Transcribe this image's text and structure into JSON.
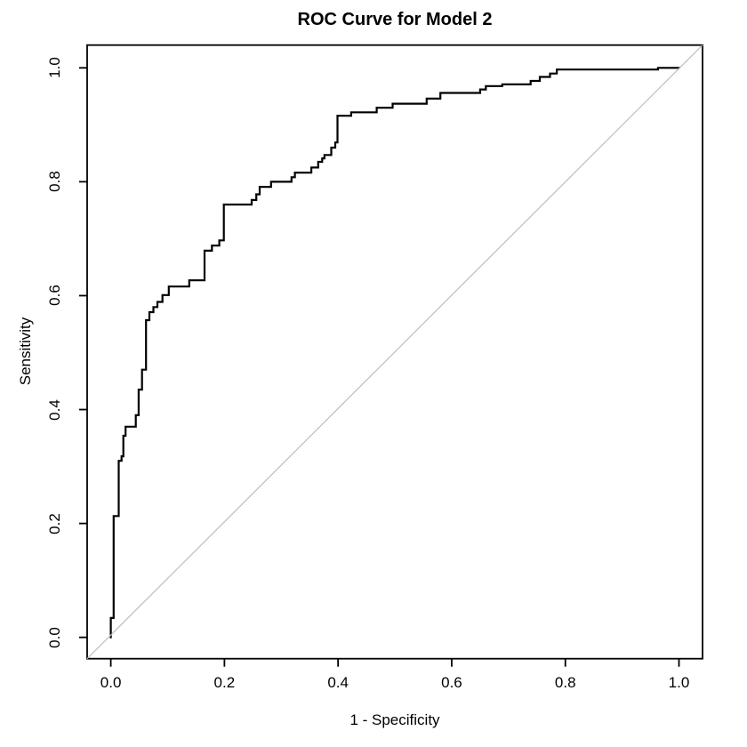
{
  "title": "ROC Curve for Model 2",
  "axes": {
    "x": {
      "label": "1 - Specificity",
      "tick_labels": [
        "0.0",
        "0.2",
        "0.4",
        "0.6",
        "0.8",
        "1.0"
      ],
      "tick_values": [
        0.0,
        0.2,
        0.4,
        0.6,
        0.8,
        1.0
      ],
      "range": [
        0.0,
        1.0
      ]
    },
    "y": {
      "label": "Sensitivity",
      "tick_labels": [
        "0.0",
        "0.2",
        "0.4",
        "0.6",
        "0.8",
        "1.0"
      ],
      "tick_values": [
        0.0,
        0.2,
        0.4,
        0.6,
        0.8,
        1.0
      ],
      "range": [
        0.0,
        1.0
      ]
    }
  },
  "colors": {
    "background": "#ffffff",
    "curve": "#000000",
    "diagonal": "#bebebe",
    "box": "#000000",
    "text": "#000000"
  },
  "chart_data": {
    "type": "line",
    "title": "ROC Curve for Model 2",
    "xlabel": "1 - Specificity",
    "ylabel": "Sensitivity",
    "xlim": [
      0.0,
      1.0
    ],
    "ylim": [
      0.0,
      1.0
    ],
    "grid": false,
    "legend_position": "none",
    "series": [
      {
        "name": "roc-curve-model-2",
        "style": "step",
        "color": "#000000",
        "line_width": 2.2,
        "points": [
          [
            0.0,
            0.0
          ],
          [
            0.0,
            0.034
          ],
          [
            0.005,
            0.034
          ],
          [
            0.005,
            0.213
          ],
          [
            0.014,
            0.213
          ],
          [
            0.014,
            0.31
          ],
          [
            0.019,
            0.31
          ],
          [
            0.019,
            0.318
          ],
          [
            0.022,
            0.318
          ],
          [
            0.022,
            0.354
          ],
          [
            0.026,
            0.354
          ],
          [
            0.026,
            0.37
          ],
          [
            0.044,
            0.37
          ],
          [
            0.044,
            0.39
          ],
          [
            0.049,
            0.39
          ],
          [
            0.049,
            0.435
          ],
          [
            0.055,
            0.435
          ],
          [
            0.055,
            0.47
          ],
          [
            0.062,
            0.47
          ],
          [
            0.062,
            0.557
          ],
          [
            0.068,
            0.557
          ],
          [
            0.068,
            0.571
          ],
          [
            0.075,
            0.571
          ],
          [
            0.075,
            0.58
          ],
          [
            0.082,
            0.58
          ],
          [
            0.082,
            0.589
          ],
          [
            0.091,
            0.589
          ],
          [
            0.091,
            0.601
          ],
          [
            0.102,
            0.601
          ],
          [
            0.102,
            0.616
          ],
          [
            0.138,
            0.616
          ],
          [
            0.138,
            0.627
          ],
          [
            0.165,
            0.627
          ],
          [
            0.165,
            0.679
          ],
          [
            0.178,
            0.679
          ],
          [
            0.178,
            0.688
          ],
          [
            0.191,
            0.688
          ],
          [
            0.191,
            0.697
          ],
          [
            0.199,
            0.697
          ],
          [
            0.199,
            0.76
          ],
          [
            0.248,
            0.76
          ],
          [
            0.248,
            0.768
          ],
          [
            0.256,
            0.768
          ],
          [
            0.256,
            0.778
          ],
          [
            0.262,
            0.778
          ],
          [
            0.262,
            0.791
          ],
          [
            0.282,
            0.791
          ],
          [
            0.282,
            0.8
          ],
          [
            0.318,
            0.8
          ],
          [
            0.318,
            0.808
          ],
          [
            0.324,
            0.808
          ],
          [
            0.324,
            0.816
          ],
          [
            0.353,
            0.816
          ],
          [
            0.353,
            0.825
          ],
          [
            0.365,
            0.825
          ],
          [
            0.365,
            0.835
          ],
          [
            0.372,
            0.835
          ],
          [
            0.372,
            0.841
          ],
          [
            0.376,
            0.841
          ],
          [
            0.376,
            0.847
          ],
          [
            0.388,
            0.847
          ],
          [
            0.388,
            0.86
          ],
          [
            0.395,
            0.86
          ],
          [
            0.395,
            0.869
          ],
          [
            0.399,
            0.869
          ],
          [
            0.399,
            0.916
          ],
          [
            0.423,
            0.916
          ],
          [
            0.423,
            0.922
          ],
          [
            0.468,
            0.922
          ],
          [
            0.468,
            0.93
          ],
          [
            0.496,
            0.93
          ],
          [
            0.496,
            0.937
          ],
          [
            0.556,
            0.937
          ],
          [
            0.556,
            0.946
          ],
          [
            0.58,
            0.946
          ],
          [
            0.58,
            0.956
          ],
          [
            0.65,
            0.956
          ],
          [
            0.65,
            0.962
          ],
          [
            0.66,
            0.962
          ],
          [
            0.66,
            0.968
          ],
          [
            0.689,
            0.968
          ],
          [
            0.689,
            0.971
          ],
          [
            0.739,
            0.971
          ],
          [
            0.739,
            0.977
          ],
          [
            0.755,
            0.977
          ],
          [
            0.755,
            0.984
          ],
          [
            0.773,
            0.984
          ],
          [
            0.773,
            0.99
          ],
          [
            0.785,
            0.99
          ],
          [
            0.785,
            0.997
          ],
          [
            0.963,
            0.997
          ],
          [
            0.963,
            1.0
          ],
          [
            1.0,
            1.0
          ]
        ]
      },
      {
        "name": "chance-diagonal",
        "style": "abline",
        "color": "#bebebe",
        "line_width": 1.2,
        "points": [
          [
            0.0,
            0.0
          ],
          [
            1.0,
            1.0
          ]
        ]
      }
    ]
  }
}
